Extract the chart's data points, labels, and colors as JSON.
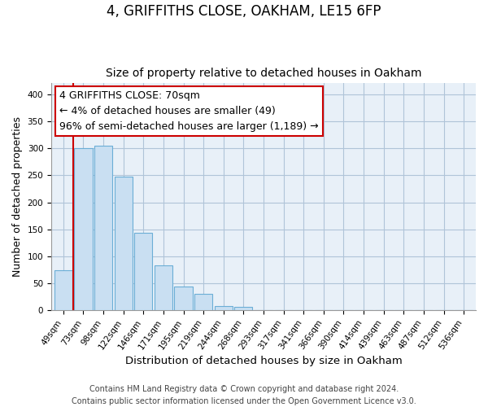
{
  "title": "4, GRIFFITHS CLOSE, OAKHAM, LE15 6FP",
  "subtitle": "Size of property relative to detached houses in Oakham",
  "xlabel": "Distribution of detached houses by size in Oakham",
  "ylabel": "Number of detached properties",
  "bar_labels": [
    "49sqm",
    "73sqm",
    "98sqm",
    "122sqm",
    "146sqm",
    "171sqm",
    "195sqm",
    "219sqm",
    "244sqm",
    "268sqm",
    "293sqm",
    "317sqm",
    "341sqm",
    "366sqm",
    "390sqm",
    "414sqm",
    "439sqm",
    "463sqm",
    "487sqm",
    "512sqm",
    "536sqm"
  ],
  "bar_heights": [
    75,
    300,
    305,
    248,
    143,
    83,
    44,
    31,
    8,
    6,
    1,
    0,
    0,
    1,
    0,
    0,
    0,
    1,
    0,
    0,
    1
  ],
  "bar_color": "#c9dff2",
  "bar_edge_color": "#6baed6",
  "vline_x": 0.5,
  "vline_color": "#cc0000",
  "annotation_text": "4 GRIFFITHS CLOSE: 70sqm\n← 4% of detached houses are smaller (49)\n96% of semi-detached houses are larger (1,189) →",
  "annotation_box_color": "#ffffff",
  "annotation_box_edge": "#cc0000",
  "ylim": [
    0,
    420
  ],
  "yticks": [
    0,
    50,
    100,
    150,
    200,
    250,
    300,
    350,
    400
  ],
  "footer_line1": "Contains HM Land Registry data © Crown copyright and database right 2024.",
  "footer_line2": "Contains public sector information licensed under the Open Government Licence v3.0.",
  "bg_color": "#ffffff",
  "plot_bg_color": "#e8f0f8",
  "grid_color": "#b0c4d8",
  "title_fontsize": 12,
  "subtitle_fontsize": 10,
  "xlabel_fontsize": 9.5,
  "ylabel_fontsize": 9,
  "tick_fontsize": 7.5,
  "annotation_fontsize": 9,
  "footer_fontsize": 7
}
